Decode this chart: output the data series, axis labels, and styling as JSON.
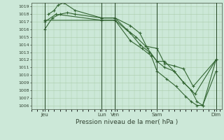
{
  "title": "Pression niveau de la mer( hPa )",
  "background_color": "#cce8d8",
  "grid_color": "#aaccaa",
  "line_color": "#336633",
  "dark_line_color": "#224422",
  "ylim": [
    1005.5,
    1019.5
  ],
  "yticks": [
    1006,
    1007,
    1008,
    1009,
    1010,
    1011,
    1012,
    1013,
    1014,
    1015,
    1016,
    1017,
    1018,
    1019
  ],
  "xlim": [
    0,
    100
  ],
  "vlines_x": [
    7,
    37,
    44,
    66,
    97
  ],
  "xtick_positions": [
    7,
    37,
    44,
    66,
    97
  ],
  "xtick_labels": [
    "Jeu",
    "Lun",
    "Ven",
    "Sam",
    "Dim"
  ],
  "line1": {
    "x": [
      7,
      11,
      15,
      19,
      23,
      37,
      44,
      50,
      55,
      60,
      66,
      70,
      75,
      80,
      85,
      97
    ],
    "y": [
      1016.0,
      1017.5,
      1018.0,
      1018.2,
      1018.0,
      1017.5,
      1017.5,
      1016.0,
      1015.0,
      1013.8,
      1013.5,
      1011.5,
      1011.2,
      1010.8,
      1008.5,
      1012.0
    ]
  },
  "line2": {
    "x": [
      9,
      12,
      14,
      17,
      23,
      37,
      44,
      52,
      57,
      61,
      66,
      70,
      75,
      80,
      86,
      97
    ],
    "y": [
      1018.0,
      1018.5,
      1019.2,
      1019.5,
      1018.5,
      1017.5,
      1017.5,
      1016.5,
      1015.5,
      1013.5,
      1011.8,
      1011.8,
      1010.5,
      1009.0,
      1007.5,
      1012.0
    ]
  },
  "line3": {
    "x": [
      7,
      13,
      37,
      44,
      52,
      57,
      62,
      66,
      70,
      75,
      80,
      84,
      87,
      90,
      97
    ],
    "y": [
      1017.0,
      1018.0,
      1017.2,
      1017.2,
      1015.5,
      1014.0,
      1013.0,
      1011.8,
      1011.0,
      1010.5,
      1009.0,
      1008.0,
      1006.5,
      1006.0,
      1012.0
    ]
  },
  "line4": {
    "x": [
      7,
      37,
      44,
      52,
      58,
      63,
      66,
      71,
      76,
      81,
      84,
      87,
      90,
      97
    ],
    "y": [
      1017.2,
      1017.2,
      1017.2,
      1014.5,
      1013.5,
      1012.5,
      1010.5,
      1009.5,
      1008.5,
      1007.2,
      1006.5,
      1006.0,
      1006.0,
      1010.5
    ]
  }
}
